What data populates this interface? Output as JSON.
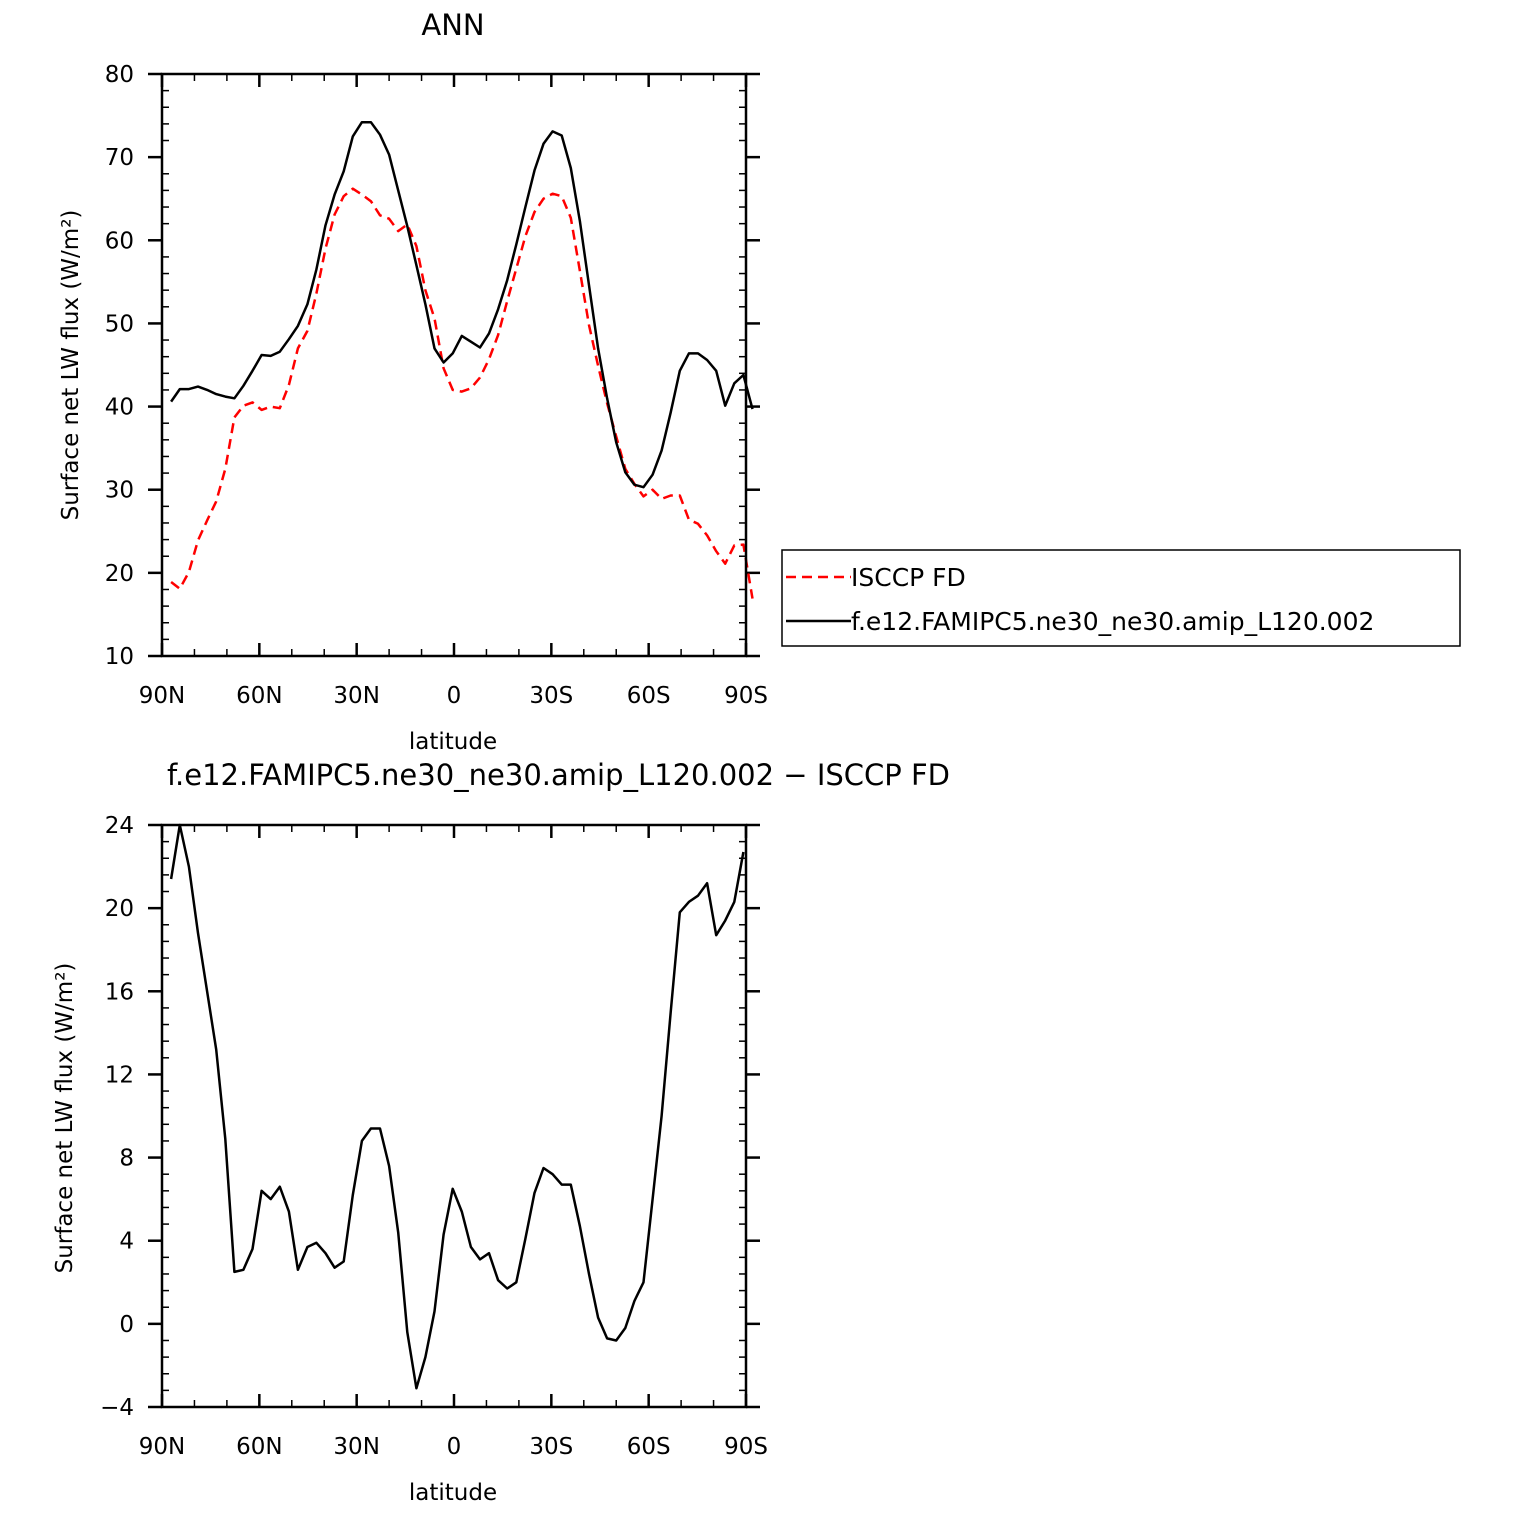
{
  "colors": {
    "obs": "#ff0000",
    "model": "#000000"
  },
  "legend": {
    "entries": [
      {
        "label": "ISCCP FD",
        "color": "#ff0000",
        "dash": "dashed"
      },
      {
        "label": "f.e12.FAMIPC5.ne30_ne30.amip_L120.002",
        "color": "#000000",
        "dash": "solid"
      }
    ],
    "placement": "right of top panel"
  },
  "chart_data": [
    {
      "type": "line",
      "title": "ANN",
      "xlabel": "latitude",
      "ylabel": "Surface net LW flux (W/m²)",
      "xlim": [
        90,
        -90
      ],
      "ylim": [
        10,
        80
      ],
      "xticks": [
        90,
        60,
        30,
        0,
        -30,
        -60,
        -90
      ],
      "xtick_labels": [
        "90N",
        "60N",
        "30N",
        "0",
        "30S",
        "60S",
        "90S"
      ],
      "yticks": [
        10,
        20,
        30,
        40,
        50,
        60,
        70,
        80
      ],
      "ytick_labels": [
        "10",
        "20",
        "30",
        "40",
        "50",
        "60",
        "70",
        "80"
      ],
      "grid": false,
      "series": [
        {
          "name": "ISCCP FD",
          "color": "#ff0000",
          "dash": "dashed",
          "points": [
            [
              87.2,
              18.9
            ],
            [
              84.5,
              18.1
            ],
            [
              81.7,
              20.1
            ],
            [
              78.9,
              23.9
            ],
            [
              76.1,
              26.3
            ],
            [
              73.3,
              28.6
            ],
            [
              70.5,
              32.5
            ],
            [
              67.7,
              38.7
            ],
            [
              64.9,
              40.1
            ],
            [
              62.1,
              40.5
            ],
            [
              59.3,
              39.6
            ],
            [
              56.5,
              40.0
            ],
            [
              53.7,
              39.8
            ],
            [
              50.9,
              42.6
            ],
            [
              48.1,
              47.0
            ],
            [
              45.2,
              49.1
            ],
            [
              42.4,
              53.6
            ],
            [
              39.6,
              59.0
            ],
            [
              36.8,
              63.1
            ],
            [
              34.0,
              65.3
            ],
            [
              31.2,
              66.2
            ],
            [
              28.4,
              65.5
            ],
            [
              25.6,
              64.7
            ],
            [
              22.8,
              63.0
            ],
            [
              20.0,
              62.6
            ],
            [
              17.2,
              61.1
            ],
            [
              14.4,
              61.9
            ],
            [
              11.6,
              59.3
            ],
            [
              8.8,
              54.0
            ],
            [
              6.0,
              50.6
            ],
            [
              3.2,
              44.6
            ],
            [
              0.4,
              42.0
            ],
            [
              -2.4,
              41.8
            ],
            [
              -5.2,
              42.2
            ],
            [
              -8.0,
              43.5
            ],
            [
              -10.8,
              45.7
            ],
            [
              -13.6,
              48.6
            ],
            [
              -16.4,
              52.7
            ],
            [
              -19.2,
              56.6
            ],
            [
              -22.0,
              60.5
            ],
            [
              -24.8,
              63.4
            ],
            [
              -27.6,
              65.0
            ],
            [
              -30.4,
              65.6
            ],
            [
              -33.2,
              65.3
            ],
            [
              -36.0,
              62.7
            ],
            [
              -38.8,
              56.3
            ],
            [
              -41.6,
              49.8
            ],
            [
              -44.4,
              44.9
            ],
            [
              -47.2,
              40.4
            ],
            [
              -50.0,
              36.4
            ],
            [
              -52.8,
              32.5
            ],
            [
              -55.6,
              30.7
            ],
            [
              -58.4,
              29.2
            ],
            [
              -61.2,
              30.0
            ],
            [
              -64.0,
              28.9
            ],
            [
              -66.8,
              29.3
            ],
            [
              -69.6,
              29.3
            ],
            [
              -72.4,
              26.4
            ],
            [
              -75.2,
              25.9
            ],
            [
              -78.0,
              24.5
            ],
            [
              -80.8,
              22.6
            ],
            [
              -83.6,
              21.1
            ],
            [
              -86.4,
              23.3
            ],
            [
              -89.2,
              23.4
            ],
            [
              -92.0,
              16.9
            ]
          ]
        },
        {
          "name": "f.e12.FAMIPC5.ne30_ne30.amip_L120.002",
          "color": "#000000",
          "dash": "solid",
          "points": [
            [
              87.2,
              40.6
            ],
            [
              84.5,
              42.1
            ],
            [
              81.7,
              42.1
            ],
            [
              78.9,
              42.4
            ],
            [
              76.1,
              42.0
            ],
            [
              73.3,
              41.5
            ],
            [
              70.5,
              41.2
            ],
            [
              67.7,
              41.0
            ],
            [
              64.9,
              42.5
            ],
            [
              62.1,
              44.3
            ],
            [
              59.3,
              46.2
            ],
            [
              56.5,
              46.1
            ],
            [
              53.7,
              46.6
            ],
            [
              50.9,
              48.1
            ],
            [
              48.1,
              49.7
            ],
            [
              45.2,
              52.3
            ],
            [
              42.4,
              56.5
            ],
            [
              39.6,
              61.8
            ],
            [
              36.8,
              65.5
            ],
            [
              34.0,
              68.3
            ],
            [
              31.2,
              72.5
            ],
            [
              28.4,
              74.2
            ],
            [
              25.6,
              74.2
            ],
            [
              22.8,
              72.7
            ],
            [
              20.0,
              70.3
            ],
            [
              17.2,
              66.0
            ],
            [
              14.4,
              61.7
            ],
            [
              11.6,
              57.0
            ],
            [
              8.8,
              52.3
            ],
            [
              6.0,
              47.0
            ],
            [
              3.2,
              45.3
            ],
            [
              0.4,
              46.4
            ],
            [
              -2.4,
              48.5
            ],
            [
              -5.2,
              47.8
            ],
            [
              -8.0,
              47.1
            ],
            [
              -10.8,
              48.8
            ],
            [
              -13.6,
              51.7
            ],
            [
              -16.4,
              55.2
            ],
            [
              -19.2,
              59.5
            ],
            [
              -22.0,
              64.0
            ],
            [
              -24.8,
              68.4
            ],
            [
              -27.6,
              71.6
            ],
            [
              -30.4,
              73.1
            ],
            [
              -33.2,
              72.6
            ],
            [
              -36.0,
              68.7
            ],
            [
              -38.8,
              62.3
            ],
            [
              -41.6,
              54.6
            ],
            [
              -44.4,
              47.0
            ],
            [
              -47.2,
              41.0
            ],
            [
              -50.0,
              35.7
            ],
            [
              -52.8,
              32.1
            ],
            [
              -55.6,
              30.6
            ],
            [
              -58.4,
              30.3
            ],
            [
              -61.2,
              31.8
            ],
            [
              -64.0,
              34.7
            ],
            [
              -66.8,
              39.3
            ],
            [
              -69.6,
              44.3
            ],
            [
              -72.4,
              46.4
            ],
            [
              -75.2,
              46.4
            ],
            [
              -78.0,
              45.6
            ],
            [
              -80.8,
              44.3
            ],
            [
              -83.6,
              40.1
            ],
            [
              -86.4,
              42.8
            ],
            [
              -89.2,
              43.8
            ],
            [
              -92.0,
              39.7
            ]
          ]
        }
      ]
    },
    {
      "type": "line",
      "title": "f.e12.FAMIPC5.ne30_ne30.amip_L120.002 − ISCCP FD",
      "xlabel": "latitude",
      "ylabel": "Surface net LW flux (W/m²)",
      "xlim": [
        90,
        -90
      ],
      "ylim": [
        -4,
        24
      ],
      "xticks": [
        90,
        60,
        30,
        0,
        -30,
        -60,
        -90
      ],
      "xtick_labels": [
        "90N",
        "60N",
        "30N",
        "0",
        "30S",
        "60S",
        "90S"
      ],
      "yticks": [
        -4,
        0,
        4,
        8,
        12,
        16,
        20,
        24
      ],
      "ytick_labels": [
        "−4",
        "0",
        "4",
        "8",
        "12",
        "16",
        "20",
        "24"
      ],
      "grid": false,
      "series": [
        {
          "name": "f.e12.FAMIPC5.ne30_ne30.amip_L120.002 − ISCCP FD",
          "color": "#000000",
          "dash": "solid",
          "points": [
            [
              87.2,
              21.4
            ],
            [
              84.5,
              24.0
            ],
            [
              81.7,
              22.0
            ],
            [
              78.9,
              18.8
            ],
            [
              76.1,
              16.0
            ],
            [
              73.3,
              13.2
            ],
            [
              70.5,
              8.9
            ],
            [
              67.7,
              2.5
            ],
            [
              64.9,
              2.6
            ],
            [
              62.1,
              3.6
            ],
            [
              59.3,
              6.4
            ],
            [
              56.5,
              6.0
            ],
            [
              53.7,
              6.6
            ],
            [
              50.9,
              5.4
            ],
            [
              48.1,
              2.6
            ],
            [
              45.2,
              3.7
            ],
            [
              42.4,
              3.9
            ],
            [
              39.6,
              3.4
            ],
            [
              36.8,
              2.7
            ],
            [
              34.0,
              3.0
            ],
            [
              31.2,
              6.2
            ],
            [
              28.4,
              8.8
            ],
            [
              25.6,
              9.4
            ],
            [
              22.8,
              9.4
            ],
            [
              20.0,
              7.6
            ],
            [
              17.2,
              4.4
            ],
            [
              14.4,
              -0.4
            ],
            [
              11.6,
              -3.1
            ],
            [
              8.8,
              -1.6
            ],
            [
              6.0,
              0.6
            ],
            [
              3.2,
              4.3
            ],
            [
              0.4,
              6.5
            ],
            [
              -2.4,
              5.4
            ],
            [
              -5.2,
              3.7
            ],
            [
              -8.0,
              3.1
            ],
            [
              -10.8,
              3.4
            ],
            [
              -13.6,
              2.1
            ],
            [
              -16.4,
              1.7
            ],
            [
              -19.2,
              2.0
            ],
            [
              -22.0,
              4.1
            ],
            [
              -24.8,
              6.3
            ],
            [
              -27.6,
              7.5
            ],
            [
              -30.4,
              7.2
            ],
            [
              -33.2,
              6.7
            ],
            [
              -36.0,
              6.7
            ],
            [
              -38.8,
              4.7
            ],
            [
              -41.6,
              2.4
            ],
            [
              -44.4,
              0.3
            ],
            [
              -47.2,
              -0.7
            ],
            [
              -50.0,
              -0.8
            ],
            [
              -52.8,
              -0.2
            ],
            [
              -55.6,
              1.1
            ],
            [
              -58.4,
              2.0
            ],
            [
              -61.2,
              6.0
            ],
            [
              -64.0,
              10.0
            ],
            [
              -66.8,
              15.0
            ],
            [
              -69.6,
              19.8
            ],
            [
              -72.4,
              20.3
            ],
            [
              -75.2,
              20.6
            ],
            [
              -78.0,
              21.2
            ],
            [
              -80.8,
              18.7
            ],
            [
              -83.6,
              19.4
            ],
            [
              -86.4,
              20.3
            ],
            [
              -89.2,
              22.7
            ]
          ]
        }
      ]
    }
  ]
}
